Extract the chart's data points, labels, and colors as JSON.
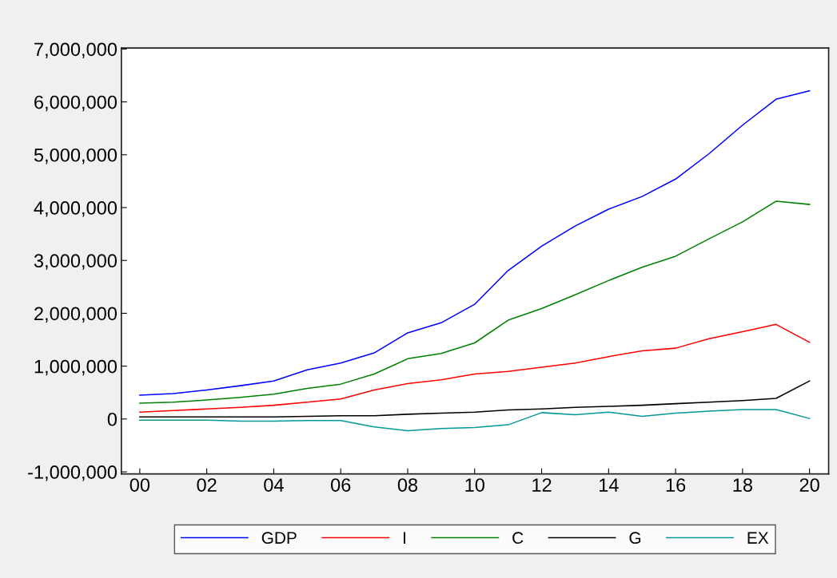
{
  "chart_data": {
    "type": "line",
    "x": [
      2000,
      2001,
      2002,
      2003,
      2004,
      2005,
      2006,
      2007,
      2008,
      2009,
      2010,
      2011,
      2012,
      2013,
      2014,
      2015,
      2016,
      2017,
      2018,
      2019,
      2020
    ],
    "series": [
      {
        "name": "GDP",
        "color": "#0000ff",
        "values": [
          450000,
          480000,
          550000,
          630000,
          720000,
          930000,
          1060000,
          1250000,
          1630000,
          1820000,
          2170000,
          2810000,
          3270000,
          3650000,
          3970000,
          4210000,
          4540000,
          5020000,
          5560000,
          6050000,
          6210000
        ]
      },
      {
        "name": "I",
        "color": "#ff0000",
        "values": [
          130000,
          160000,
          190000,
          220000,
          260000,
          320000,
          380000,
          550000,
          670000,
          740000,
          850000,
          900000,
          980000,
          1060000,
          1180000,
          1290000,
          1340000,
          1520000,
          1650000,
          1790000,
          1450000
        ]
      },
      {
        "name": "C",
        "color": "#008000",
        "values": [
          300000,
          320000,
          360000,
          410000,
          470000,
          580000,
          660000,
          850000,
          1140000,
          1240000,
          1440000,
          1870000,
          2090000,
          2350000,
          2620000,
          2870000,
          3080000,
          3410000,
          3730000,
          4120000,
          4060000
        ]
      },
      {
        "name": "G",
        "color": "#000000",
        "values": [
          40000,
          40000,
          40000,
          40000,
          40000,
          50000,
          60000,
          60000,
          90000,
          110000,
          130000,
          170000,
          190000,
          220000,
          240000,
          260000,
          290000,
          320000,
          350000,
          390000,
          720000
        ]
      },
      {
        "name": "EX",
        "color": "#009999",
        "values": [
          -20000,
          -20000,
          -20000,
          -40000,
          -40000,
          -30000,
          -30000,
          -150000,
          -220000,
          -180000,
          -160000,
          -110000,
          120000,
          80000,
          130000,
          50000,
          110000,
          150000,
          180000,
          180000,
          10000
        ]
      }
    ],
    "xlim": [
      1999.45,
      2020.57
    ],
    "xticks": [
      {
        "value": 2000,
        "label": "00"
      },
      {
        "value": 2002,
        "label": "02"
      },
      {
        "value": 2004,
        "label": "04"
      },
      {
        "value": 2006,
        "label": "06"
      },
      {
        "value": 2008,
        "label": "08"
      },
      {
        "value": 2010,
        "label": "10"
      },
      {
        "value": 2012,
        "label": "12"
      },
      {
        "value": 2014,
        "label": "14"
      },
      {
        "value": 2016,
        "label": "16"
      },
      {
        "value": 2018,
        "label": "18"
      },
      {
        "value": 2020,
        "label": "20"
      }
    ],
    "ylim": [
      -1040000,
      7020000
    ],
    "yticks": [
      {
        "value": -1000000,
        "label": "-1,000,000"
      },
      {
        "value": 0,
        "label": "0"
      },
      {
        "value": 1000000,
        "label": "1,000,000"
      },
      {
        "value": 2000000,
        "label": "2,000,000"
      },
      {
        "value": 3000000,
        "label": "3,000,000"
      },
      {
        "value": 4000000,
        "label": "4,000,000"
      },
      {
        "value": 5000000,
        "label": "5,000,000"
      },
      {
        "value": 6000000,
        "label": "6,000,000"
      },
      {
        "value": 7000000,
        "label": "7,000,000"
      }
    ],
    "legend": "bottom",
    "grid": false,
    "line_style": "solid",
    "marker": "none"
  }
}
